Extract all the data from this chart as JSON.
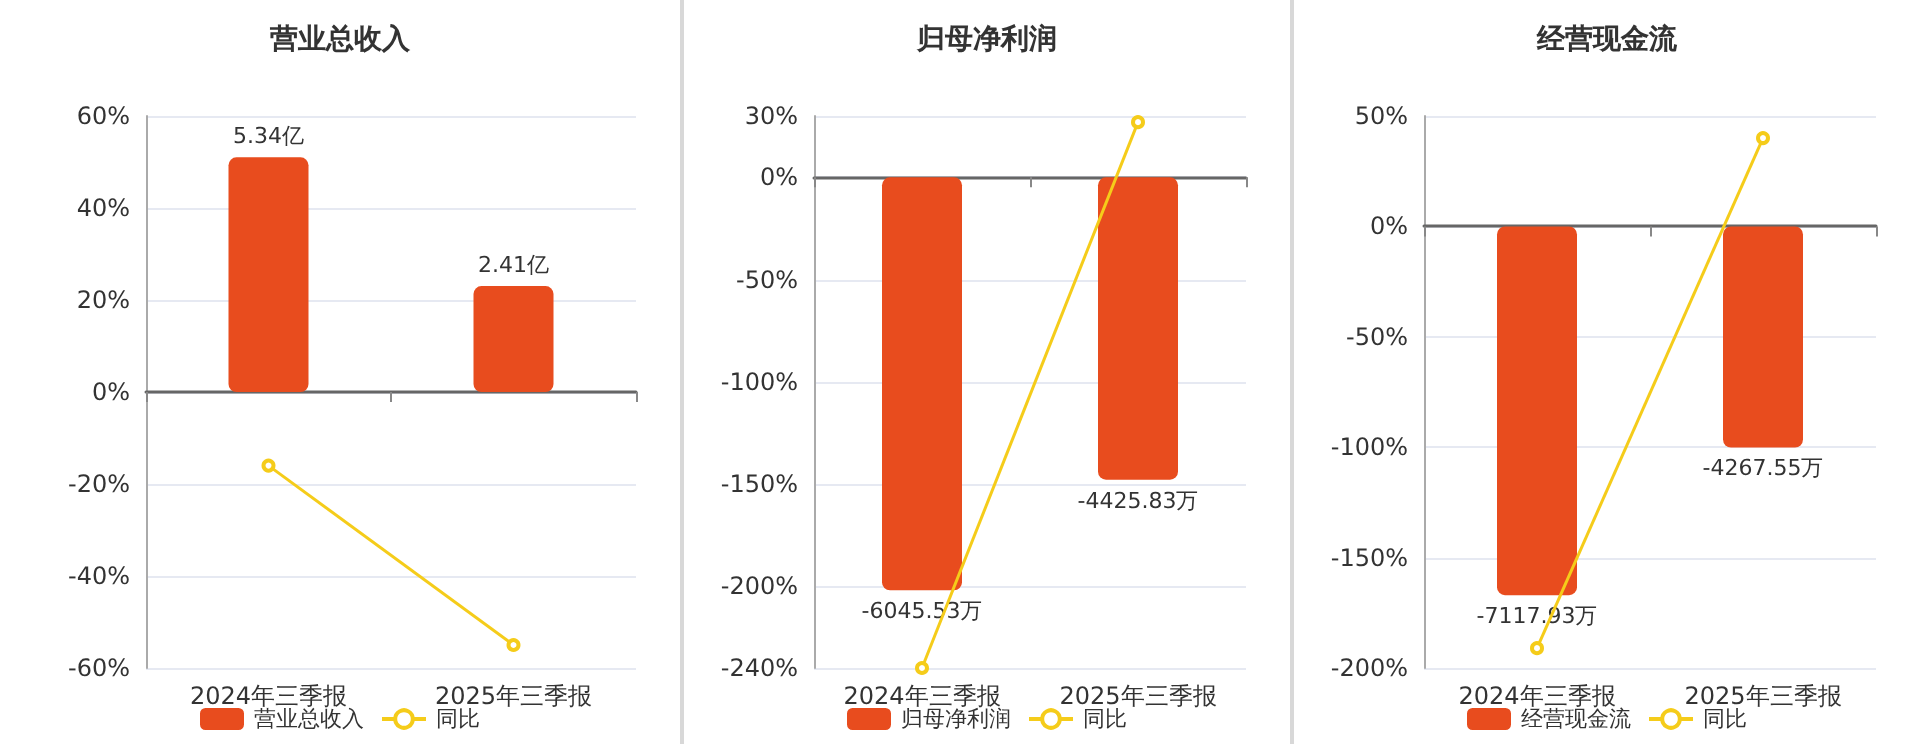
{
  "chart_data": [
    {
      "type": "bar",
      "title": "营业总收入",
      "categories": [
        "2024年三季报",
        "2025年三季报"
      ],
      "series": [
        {
          "name": "营业总收入",
          "axis": "y2",
          "color": "#e84c1e",
          "values": [
            5.34,
            2.41
          ],
          "value_labels": [
            "5.34亿",
            "2.41亿"
          ]
        },
        {
          "name": "同比",
          "type": "line",
          "color": "#f5cc1a",
          "values": [
            -16,
            -55
          ]
        }
      ],
      "ylim": [
        -60,
        60
      ],
      "yticks": [
        {
          "value": -60,
          "label": "-60%"
        },
        {
          "value": -40,
          "label": "-40%"
        },
        {
          "value": -20,
          "label": "-20%"
        },
        {
          "value": 0,
          "label": "0%"
        },
        {
          "value": 20,
          "label": "20%"
        },
        {
          "value": 40,
          "label": "40%"
        },
        {
          "value": 60,
          "label": "60%"
        }
      ],
      "y2lim": [
        -6.28,
        6.28
      ],
      "grid": "y",
      "legend": "bottom",
      "marker": "circle"
    },
    {
      "type": "bar",
      "title": "归母净利润",
      "categories": [
        "2024年三季报",
        "2025年三季报"
      ],
      "series": [
        {
          "name": "归母净利润",
          "axis": "y2",
          "color": "#e84c1e",
          "values": [
            -6045.53,
            -4425.83
          ],
          "value_labels": [
            "-6045.53万",
            "-4425.83万"
          ]
        },
        {
          "name": "同比",
          "type": "line",
          "color": "#f5cc1a",
          "values": [
            -240,
            27
          ]
        }
      ],
      "ylim": [
        -240,
        30
      ],
      "yticks": [
        {
          "value": -240,
          "label": "-240%"
        },
        {
          "value": -200,
          "label": "-200%"
        },
        {
          "value": -150,
          "label": "-150%"
        },
        {
          "value": -100,
          "label": "-100%"
        },
        {
          "value": -50,
          "label": "-50%"
        },
        {
          "value": 0,
          "label": "0%"
        },
        {
          "value": 30,
          "label": "30%"
        }
      ],
      "y2lim": [
        -7183,
        898
      ],
      "grid": "y",
      "legend": "bottom",
      "marker": "circle"
    },
    {
      "type": "bar",
      "title": "经营现金流",
      "categories": [
        "2024年三季报",
        "2025年三季报"
      ],
      "series": [
        {
          "name": "经营现金流",
          "axis": "y2",
          "color": "#e84c1e",
          "values": [
            -7117.93,
            -4267.55
          ],
          "value_labels": [
            "-7117.93万",
            "-4267.55万"
          ]
        },
        {
          "name": "同比",
          "type": "line",
          "color": "#f5cc1a",
          "values": [
            -191,
            40
          ]
        }
      ],
      "ylim": [
        -200,
        50
      ],
      "yticks": [
        {
          "value": -200,
          "label": "-200%"
        },
        {
          "value": -150,
          "label": "-150%"
        },
        {
          "value": -100,
          "label": "-100%"
        },
        {
          "value": -50,
          "label": "-50%"
        },
        {
          "value": 0,
          "label": "0%"
        },
        {
          "value": 50,
          "label": "50%"
        }
      ],
      "y2lim": [
        -8524,
        2131
      ],
      "grid": "y",
      "legend": "bottom",
      "marker": "circle"
    }
  ]
}
